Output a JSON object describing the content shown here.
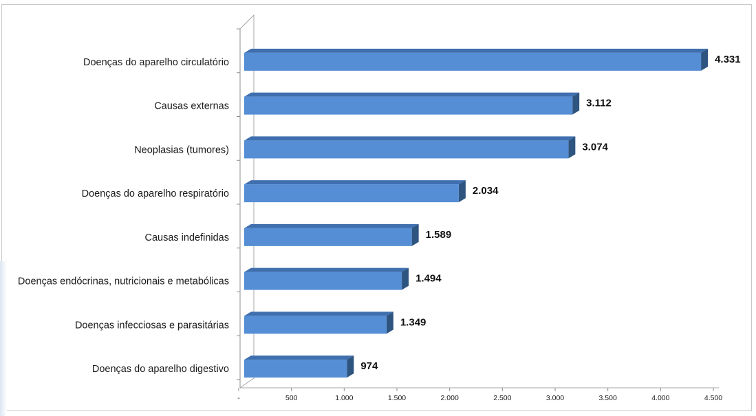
{
  "chart_data": {
    "type": "bar",
    "orientation": "horizontal",
    "title": "",
    "xlabel": "",
    "ylabel": "",
    "categories": [
      "Doenças do aparelho circulatório",
      "Causas externas",
      "Neoplasias (tumores)",
      "Doenças do aparelho respiratório",
      "Causas indefinidas",
      "Doenças endócrinas, nutricionais e metabólicas",
      "Doenças infecciosas e parasitárias",
      "Doenças do aparelho digestivo"
    ],
    "values": [
      4331,
      3112,
      3074,
      2034,
      1589,
      1494,
      1349,
      974
    ],
    "value_labels": [
      "4.331",
      "3.112",
      "3.074",
      "2.034",
      "1.589",
      "1.494",
      "1.349",
      "974"
    ],
    "xlim": [
      0,
      4500
    ],
    "x_ticks": [
      0,
      500,
      1000,
      1500,
      2000,
      2500,
      3000,
      3500,
      4000,
      4500
    ],
    "x_tick_labels": [
      "-",
      "500",
      "1.000",
      "1.500",
      "2.000",
      "2.500",
      "3.000",
      "3.500",
      "4.000",
      "4.500"
    ],
    "grid": false,
    "legend": "none",
    "bar_color": "#558ed5",
    "bar_top_color": "#3f6fae",
    "bar_side_color": "#2e5480"
  }
}
